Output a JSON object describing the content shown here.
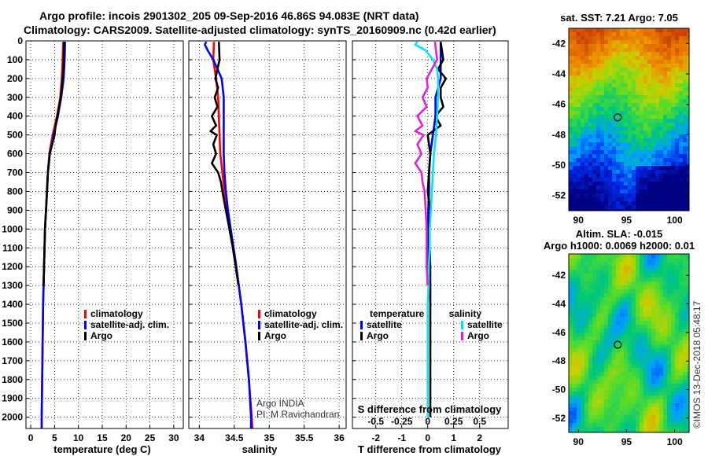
{
  "header": {
    "title_line1": "Argo profile: incois 2901302_205 09-Sep-2016 46.86S 94.083E (NRT data)",
    "title_line2": "Climatology: CARS2009. Satellite-adjusted climatology: synTS_20160909.nc (0.42d earlier)"
  },
  "colors": {
    "climatology": "#ff0000",
    "satellite": "#0000ff",
    "argo": "#000000",
    "satellite_salinity": "#00e5ff",
    "argo_salinity": "#e020e0"
  },
  "depth_ticks": [
    "0",
    "100",
    "200",
    "300",
    "400",
    "500",
    "600",
    "700",
    "800",
    "900",
    "1000",
    "1100",
    "1200",
    "1300",
    "1400",
    "1500",
    "1600",
    "1700",
    "1800",
    "1900",
    "2000"
  ],
  "chart_data": [
    {
      "type": "line",
      "id": "temperature",
      "xlabel": "temperature (deg C)",
      "ylabel": "",
      "xlim": [
        -1,
        32
      ],
      "ylim": [
        2060,
        0
      ],
      "xticks": [
        0,
        5,
        10,
        15,
        20,
        25,
        30
      ],
      "xtick_labels": [
        "0",
        "5",
        "10",
        "15",
        "20",
        "25",
        "30"
      ],
      "legend": [
        "climatology",
        "satellite-adj. clim.",
        "Argo"
      ],
      "series": [
        {
          "name": "climatology",
          "color": "#ff0000",
          "depth": [
            5,
            100,
            200,
            300,
            400,
            500,
            600,
            700,
            800,
            900,
            1000,
            1200,
            1400,
            1600,
            1800,
            2000,
            2060
          ],
          "values": [
            6.8,
            6.7,
            6.5,
            6.2,
            5.5,
            4.6,
            3.9,
            3.6,
            3.4,
            3.2,
            3.0,
            2.8,
            2.6,
            2.5,
            2.4,
            2.3,
            2.3
          ]
        },
        {
          "name": "satellite-adj. clim.",
          "color": "#0000ff",
          "depth": [
            5,
            100,
            200,
            300,
            400,
            500,
            600,
            700,
            800,
            900,
            1000,
            1200,
            1400,
            1600,
            1800,
            2000,
            2060
          ],
          "values": [
            7.2,
            7.1,
            6.9,
            6.4,
            5.7,
            4.8,
            4.0,
            3.6,
            3.4,
            3.2,
            3.0,
            2.8,
            2.6,
            2.5,
            2.4,
            2.3,
            2.3
          ]
        },
        {
          "name": "Argo",
          "color": "#000000",
          "depth": [
            5,
            100,
            200,
            300,
            400,
            450,
            500,
            550,
            600,
            700,
            800,
            900,
            1000,
            1100,
            1200,
            1300
          ],
          "values": [
            7.0,
            6.9,
            6.7,
            6.3,
            5.6,
            5.2,
            5.0,
            4.5,
            4.0,
            3.6,
            3.4,
            3.2,
            3.0,
            2.9,
            2.8,
            2.7
          ]
        }
      ]
    },
    {
      "type": "line",
      "id": "salinity",
      "xlabel": "salinity",
      "xlim": [
        33.85,
        36.1
      ],
      "ylim": [
        2060,
        0
      ],
      "xticks": [
        34,
        34.5,
        35,
        35.5,
        36
      ],
      "xtick_labels": [
        "34",
        "34.5",
        "35",
        "35.5",
        "36"
      ],
      "legend": [
        "climatology",
        "satellite-adj. clim.",
        "Argo"
      ],
      "annotation": [
        "Argo INDIA",
        "PI: M Ravichandran"
      ],
      "series": [
        {
          "name": "climatology",
          "color": "#ff0000",
          "depth": [
            5,
            100,
            200,
            300,
            400,
            500,
            600,
            700,
            800,
            900,
            1000,
            1100,
            1200,
            1400,
            1600,
            1800,
            2000,
            2060
          ],
          "values": [
            34.21,
            34.2,
            34.24,
            34.27,
            34.28,
            34.29,
            34.3,
            34.33,
            34.36,
            34.4,
            34.44,
            34.49,
            34.53,
            34.6,
            34.66,
            34.71,
            34.75,
            34.76
          ]
        },
        {
          "name": "satellite-adj. clim.",
          "color": "#0000ff",
          "depth": [
            5,
            20,
            50,
            100,
            200,
            300,
            400,
            500,
            600,
            700,
            800,
            900,
            1000,
            1100,
            1200,
            1400,
            1600,
            1800,
            2000,
            2060
          ],
          "values": [
            34.1,
            34.08,
            34.12,
            34.2,
            34.32,
            34.35,
            34.35,
            34.35,
            34.35,
            34.36,
            34.38,
            34.41,
            34.45,
            34.49,
            34.53,
            34.6,
            34.66,
            34.71,
            34.74,
            34.74
          ]
        },
        {
          "name": "Argo",
          "color": "#000000",
          "depth": [
            5,
            100,
            200,
            250,
            300,
            350,
            400,
            450,
            480,
            500,
            550,
            600,
            650,
            700,
            750,
            800,
            900,
            1000,
            1100,
            1200,
            1300
          ],
          "values": [
            34.28,
            34.29,
            34.23,
            34.27,
            34.22,
            34.26,
            34.18,
            34.24,
            34.16,
            34.25,
            34.2,
            34.24,
            34.18,
            34.27,
            34.31,
            34.33,
            34.38,
            34.43,
            34.48,
            34.52,
            34.56
          ]
        }
      ]
    },
    {
      "type": "line",
      "id": "difference",
      "xlabel": "T difference from climatology",
      "xlabel_top": "S difference from climatology",
      "xlim": [
        -2.9,
        3.1
      ],
      "ylim": [
        2060,
        0
      ],
      "xticks": [
        -2,
        -1,
        0,
        1,
        2
      ],
      "xtick_labels": [
        "-2",
        "-1",
        "0",
        "1",
        "2"
      ],
      "sticks": [
        -0.5,
        -0.25,
        0,
        0.25,
        0.5
      ],
      "stick_labels": [
        "-0.5",
        "-0.25",
        "0",
        "0.25",
        "0.5"
      ],
      "legend_left_title": "temperature",
      "legend_right_title": "salinity",
      "legend_left": [
        "satellite",
        "Argo"
      ],
      "legend_right": [
        "satellite",
        "Argo"
      ],
      "series": [
        {
          "name": "T satellite",
          "color": "#0000ff",
          "depth": [
            5,
            100,
            200,
            300,
            400,
            500,
            600,
            700,
            800,
            900,
            1000,
            1200,
            1300
          ],
          "values": [
            0.5,
            0.5,
            0.5,
            0.3,
            0.3,
            0.2,
            0.1,
            0.05,
            0.05,
            0.02,
            0.02,
            0.0,
            0.0
          ]
        },
        {
          "name": "T Argo",
          "color": "#000000",
          "depth": [
            5,
            100,
            150,
            200,
            250,
            300,
            350,
            400,
            450,
            500,
            600,
            700,
            800,
            900,
            1000,
            1200,
            1400,
            1600,
            1800,
            2000
          ],
          "values": [
            0.5,
            0.6,
            0.4,
            0.7,
            0.5,
            0.5,
            0.6,
            0.3,
            0.5,
            0.0,
            0.1,
            0.05,
            0.0,
            0.1,
            0.05,
            0.1,
            0.1,
            0.1,
            0.1,
            0.1
          ]
        },
        {
          "name": "S satellite",
          "color": "#00e5ff",
          "depth": [
            5,
            20,
            50,
            100,
            150,
            200,
            300,
            400,
            500,
            600,
            800,
            1000,
            1100,
            1200,
            1300,
            1400,
            1600,
            1800,
            2000
          ],
          "values": [
            -0.1,
            -0.12,
            -0.02,
            0.05,
            0.09,
            0.1,
            0.1,
            0.09,
            0.08,
            0.06,
            0.04,
            0.02,
            0.02,
            0.01,
            0.01,
            0.0,
            0.0,
            0.0,
            0.0
          ]
        },
        {
          "name": "S Argo",
          "color": "#e020e0",
          "depth": [
            5,
            100,
            200,
            250,
            300,
            350,
            400,
            450,
            480,
            500,
            550,
            600,
            650,
            700,
            750,
            800,
            900,
            1000,
            1100,
            1200,
            1300
          ],
          "values": [
            0.07,
            0.09,
            -0.01,
            0.0,
            -0.05,
            -0.01,
            -0.1,
            -0.05,
            -0.12,
            -0.04,
            -0.1,
            -0.06,
            -0.12,
            -0.06,
            -0.05,
            -0.03,
            -0.02,
            -0.01,
            -0.01,
            -0.01,
            0.0
          ]
        }
      ]
    },
    {
      "type": "heatmap",
      "id": "sst_map",
      "title": "sat. SST: 7.21 Argo: 7.05",
      "xlim": [
        89,
        101.5
      ],
      "ylim": [
        -53,
        -41
      ],
      "xticks": [
        90,
        95,
        100
      ],
      "yticks": [
        -42,
        -44,
        -46,
        -48,
        -50,
        -52
      ],
      "xtick_labels": [
        "90",
        "95",
        "100"
      ],
      "ytick_labels": [
        "-42",
        "-44",
        "-46",
        "-48",
        "-50",
        "-52"
      ],
      "marker": {
        "lon": 94.083,
        "lat": -46.86
      }
    },
    {
      "type": "heatmap",
      "id": "sla_map",
      "title1": "Altim. SLA: -0.015",
      "title2": "Argo h1000: 0.0069 h2000: 0.01",
      "xlim": [
        89,
        101.5
      ],
      "ylim": [
        -53,
        -40.5
      ],
      "xticks": [
        90,
        95,
        100
      ],
      "yticks": [
        -42,
        -44,
        -46,
        -48,
        -50,
        -52
      ],
      "xtick_labels": [
        "90",
        "95",
        "100"
      ],
      "ytick_labels": [
        "-42",
        "-44",
        "-46",
        "-48",
        "-50",
        "-52"
      ],
      "marker": {
        "lon": 94.083,
        "lat": -46.86
      }
    }
  ],
  "footer": {
    "credit": "©IMOS 13-Dec-2018 05:48:17"
  }
}
